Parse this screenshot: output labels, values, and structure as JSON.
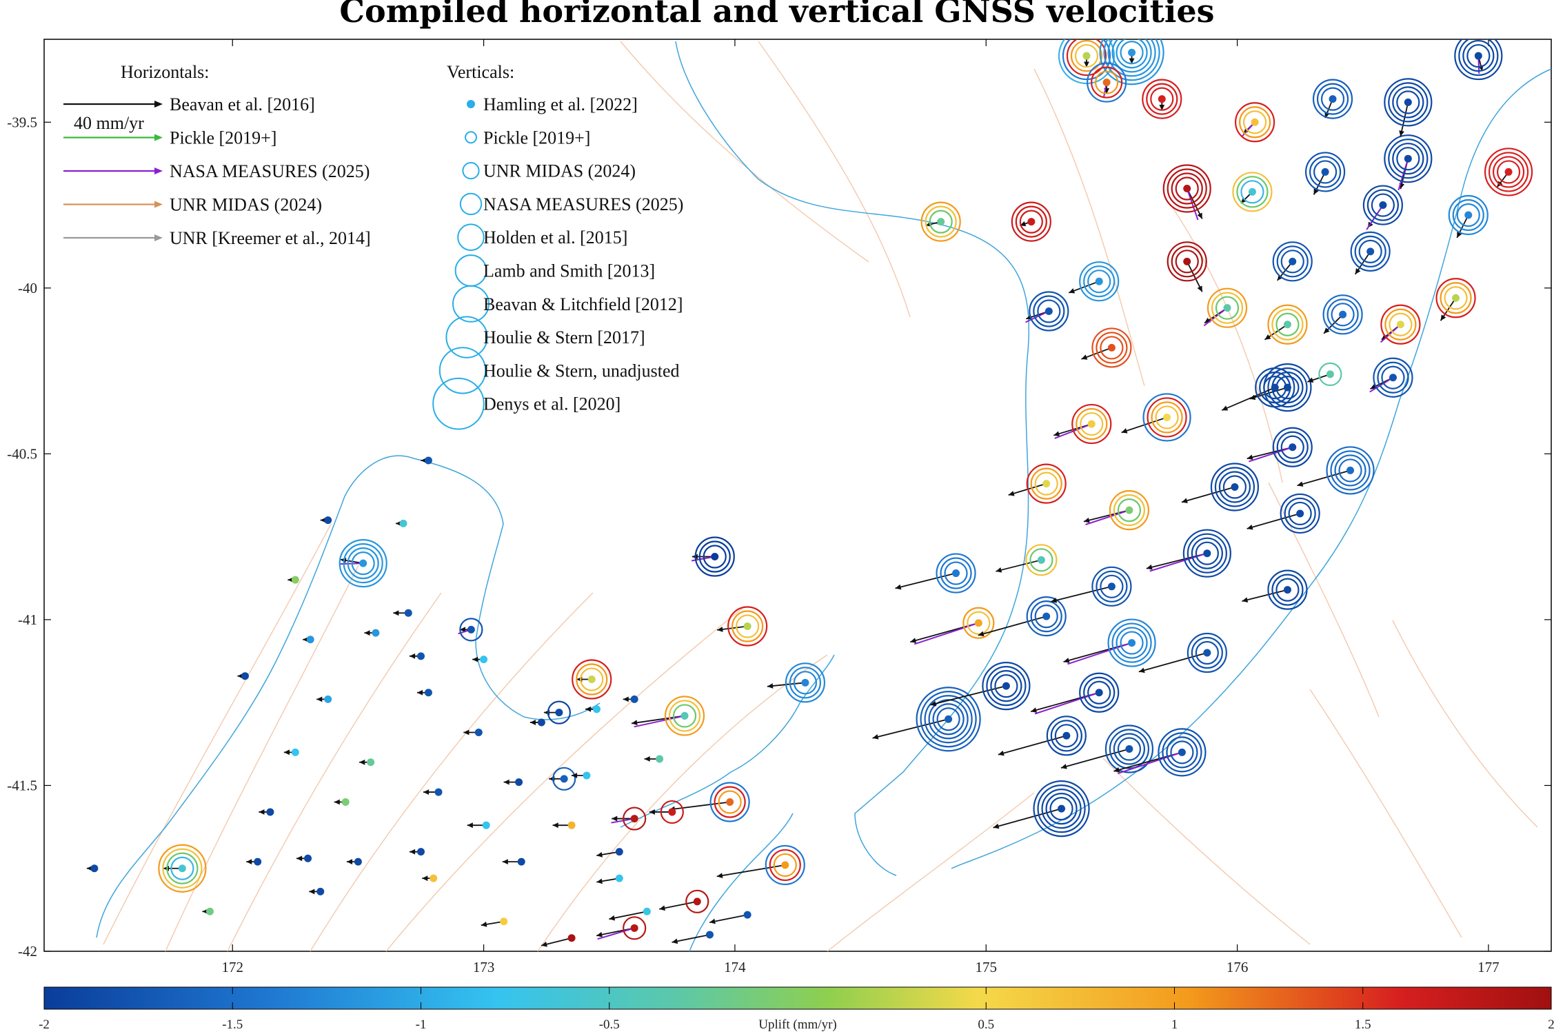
{
  "chart_data": {
    "type": "scatter",
    "title": "Compiled horizontal and vertical GNSS velocities",
    "xlim": [
      171.25,
      177.25
    ],
    "ylim": [
      -42.0,
      -39.25
    ],
    "x_ticks": [
      172,
      173,
      174,
      175,
      176,
      177
    ],
    "y_ticks": [
      -39.5,
      -40,
      -40.5,
      -41,
      -41.5,
      -42
    ],
    "horizontal_legend": {
      "heading": "Horizontals:",
      "scale_label": "40 mm/yr",
      "entries": [
        {
          "name": "Beavan et al. [2016]",
          "color": "#111111"
        },
        {
          "name": "Pickle [2019+]",
          "color": "#3cb83c"
        },
        {
          "name": "NASA MEASURES (2025)",
          "color": "#8a1fd0"
        },
        {
          "name": "UNR MIDAS (2024)",
          "color": "#d4935a"
        },
        {
          "name": "UNR [Kreemer et al., 2014]",
          "color": "#999999"
        }
      ]
    },
    "vertical_legend": {
      "heading": "Verticals:",
      "entries": [
        {
          "name": "Hamling et al. [2022]",
          "marker": "dot"
        },
        {
          "name": "Pickle [2019+]",
          "marker": "ring"
        },
        {
          "name": "UNR MIDAS (2024)",
          "marker": "ring"
        },
        {
          "name": "NASA MEASURES (2025)",
          "marker": "ring"
        },
        {
          "name": "Holden et al. [2015]",
          "marker": "ring"
        },
        {
          "name": "Lamb and Smith [2013]",
          "marker": "ring"
        },
        {
          "name": "Beavan & Litchfield [2012]",
          "marker": "ring"
        },
        {
          "name": "Houlie & Stern [2017]",
          "marker": "ring"
        },
        {
          "name": "Houlie & Stern, unadjusted",
          "marker": "ring"
        },
        {
          "name": "Denys et al. [2020]",
          "marker": "ring"
        }
      ]
    },
    "colorbar": {
      "label": "Uplift (mm/yr)",
      "range": [
        -2,
        2
      ],
      "ticks": [
        "-2",
        "-1.5",
        "-1",
        "-0.5",
        "0.5",
        "1",
        "1.5",
        "2"
      ],
      "colormap": [
        "#0a3d9a",
        "#1f78d1",
        "#35c3f0",
        "#5cc8a8",
        "#8fcf4f",
        "#f5d94a",
        "#f39a1c",
        "#d61f1f",
        "#a01010"
      ]
    },
    "sites": [
      {
        "lon": 172.52,
        "lat": -40.83,
        "uplift": -1.3,
        "rings": 4,
        "vx": -6,
        "vy": 1
      },
      {
        "lon": 171.8,
        "lat": -41.75,
        "uplift": -0.8,
        "rings": 4,
        "vx": -5,
        "vy": 0
      },
      {
        "lon": 173.43,
        "lat": -41.18,
        "uplift": 0.3,
        "rings": 3,
        "vx": -4,
        "vy": 0
      },
      {
        "lon": 173.92,
        "lat": -40.81,
        "uplift": -2.0,
        "rings": 3,
        "vx": -6,
        "vy": 0
      },
      {
        "lon": 174.05,
        "lat": -41.02,
        "uplift": 0.2,
        "rings": 3,
        "vx": -8,
        "vy": -1
      },
      {
        "lon": 174.28,
        "lat": -41.19,
        "uplift": -1.4,
        "rings": 3,
        "vx": -10,
        "vy": -1
      },
      {
        "lon": 173.8,
        "lat": -41.29,
        "uplift": -0.6,
        "rings": 3,
        "vx": -14,
        "vy": -2
      },
      {
        "lon": 173.98,
        "lat": -41.55,
        "uplift": 1.2,
        "rings": 3,
        "vx": -16,
        "vy": -2
      },
      {
        "lon": 174.2,
        "lat": -41.74,
        "uplift": 1.0,
        "rings": 3,
        "vx": -18,
        "vy": -3
      },
      {
        "lon": 172.95,
        "lat": -41.03,
        "uplift": -1.8,
        "rings": 1,
        "vx": -3,
        "vy": 0
      },
      {
        "lon": 173.3,
        "lat": -41.28,
        "uplift": -1.9,
        "rings": 1,
        "vx": -4,
        "vy": 0
      },
      {
        "lon": 173.32,
        "lat": -41.48,
        "uplift": -1.7,
        "rings": 1,
        "vx": -4,
        "vy": 0
      },
      {
        "lon": 173.6,
        "lat": -41.6,
        "uplift": 1.8,
        "rings": 1,
        "vx": -6,
        "vy": 0
      },
      {
        "lon": 173.75,
        "lat": -41.58,
        "uplift": 1.6,
        "rings": 1,
        "vx": -6,
        "vy": 0
      },
      {
        "lon": 173.85,
        "lat": -41.85,
        "uplift": 1.8,
        "rings": 1,
        "vx": -10,
        "vy": -2
      },
      {
        "lon": 173.6,
        "lat": -41.93,
        "uplift": 1.8,
        "rings": 1,
        "vx": -10,
        "vy": -2
      },
      {
        "lon": 174.82,
        "lat": -39.8,
        "uplift": -0.4,
        "rings": 3,
        "vx": -4,
        "vy": -1
      },
      {
        "lon": 175.18,
        "lat": -39.8,
        "uplift": 1.6,
        "rings": 3,
        "vx": -3,
        "vy": -1
      },
      {
        "lon": 175.25,
        "lat": -40.07,
        "uplift": -1.8,
        "rings": 3,
        "vx": -6,
        "vy": -2
      },
      {
        "lon": 175.45,
        "lat": -39.98,
        "uplift": -1.3,
        "rings": 3,
        "vx": -8,
        "vy": -3
      },
      {
        "lon": 175.5,
        "lat": -40.18,
        "uplift": 1.3,
        "rings": 3,
        "vx": -8,
        "vy": -3
      },
      {
        "lon": 175.42,
        "lat": -40.41,
        "uplift": 0.6,
        "rings": 3,
        "vx": -10,
        "vy": -3
      },
      {
        "lon": 175.72,
        "lat": -40.39,
        "uplift": 0.5,
        "rings": 4,
        "vx": -12,
        "vy": -4
      },
      {
        "lon": 175.24,
        "lat": -40.59,
        "uplift": 0.4,
        "rings": 3,
        "vx": -10,
        "vy": -3
      },
      {
        "lon": 175.57,
        "lat": -40.67,
        "uplift": -0.2,
        "rings": 3,
        "vx": -12,
        "vy": -3
      },
      {
        "lon": 175.22,
        "lat": -40.82,
        "uplift": -0.6,
        "rings": 2,
        "vx": -12,
        "vy": -3
      },
      {
        "lon": 174.88,
        "lat": -40.86,
        "uplift": -1.5,
        "rings": 3,
        "vx": -16,
        "vy": -4
      },
      {
        "lon": 174.97,
        "lat": -41.01,
        "uplift": 0.9,
        "rings": 2,
        "vx": -18,
        "vy": -5
      },
      {
        "lon": 175.24,
        "lat": -40.99,
        "uplift": -1.7,
        "rings": 3,
        "vx": -18,
        "vy": -5
      },
      {
        "lon": 175.5,
        "lat": -40.9,
        "uplift": -1.8,
        "rings": 3,
        "vx": -16,
        "vy": -4
      },
      {
        "lon": 175.58,
        "lat": -41.07,
        "uplift": -1.4,
        "rings": 4,
        "vx": -18,
        "vy": -5
      },
      {
        "lon": 175.88,
        "lat": -41.1,
        "uplift": -1.8,
        "rings": 3,
        "vx": -18,
        "vy": -5
      },
      {
        "lon": 176.2,
        "lat": -40.91,
        "uplift": -1.9,
        "rings": 3,
        "vx": -12,
        "vy": -3
      },
      {
        "lon": 175.88,
        "lat": -40.8,
        "uplift": -1.9,
        "rings": 4,
        "vx": -16,
        "vy": -4
      },
      {
        "lon": 175.99,
        "lat": -40.6,
        "uplift": -1.9,
        "rings": 4,
        "vx": -14,
        "vy": -4
      },
      {
        "lon": 176.25,
        "lat": -40.68,
        "uplift": -1.9,
        "rings": 3,
        "vx": -14,
        "vy": -4
      },
      {
        "lon": 176.22,
        "lat": -40.48,
        "uplift": -1.9,
        "rings": 3,
        "vx": -12,
        "vy": -3
      },
      {
        "lon": 176.45,
        "lat": -40.55,
        "uplift": -1.6,
        "rings": 4,
        "vx": -14,
        "vy": -4
      },
      {
        "lon": 176.2,
        "lat": -40.3,
        "uplift": -1.9,
        "rings": 4,
        "vx": -10,
        "vy": -3
      },
      {
        "lon": 176.62,
        "lat": -40.27,
        "uplift": -1.8,
        "rings": 3,
        "vx": -6,
        "vy": -3
      },
      {
        "lon": 176.37,
        "lat": -40.26,
        "uplift": -0.5,
        "rings": 1,
        "vx": -6,
        "vy": -2
      },
      {
        "lon": 175.32,
        "lat": -41.35,
        "uplift": -1.9,
        "rings": 3,
        "vx": -18,
        "vy": -5
      },
      {
        "lon": 175.45,
        "lat": -41.22,
        "uplift": -1.9,
        "rings": 3,
        "vx": -18,
        "vy": -5
      },
      {
        "lon": 175.3,
        "lat": -41.57,
        "uplift": -1.9,
        "rings": 5,
        "vx": -18,
        "vy": -5
      },
      {
        "lon": 175.57,
        "lat": -41.39,
        "uplift": -1.8,
        "rings": 4,
        "vx": -18,
        "vy": -5
      },
      {
        "lon": 175.78,
        "lat": -41.4,
        "uplift": -1.8,
        "rings": 4,
        "vx": -18,
        "vy": -5
      },
      {
        "lon": 174.85,
        "lat": -41.3,
        "uplift": -1.7,
        "rings": 6,
        "vx": -20,
        "vy": -5
      },
      {
        "lon": 175.08,
        "lat": -41.2,
        "uplift": -1.9,
        "rings": 4,
        "vx": -20,
        "vy": -5
      },
      {
        "lon": 175.8,
        "lat": -39.7,
        "uplift": 1.8,
        "rings": 4,
        "vx": 4,
        "vy": -8
      },
      {
        "lon": 175.8,
        "lat": -39.92,
        "uplift": 1.9,
        "rings": 3,
        "vx": 4,
        "vy": -8
      },
      {
        "lon": 176.06,
        "lat": -39.71,
        "uplift": -0.8,
        "rings": 3,
        "vx": -3,
        "vy": -3
      },
      {
        "lon": 176.07,
        "lat": -39.5,
        "uplift": 0.7,
        "rings": 3,
        "vx": -3,
        "vy": -3
      },
      {
        "lon": 176.38,
        "lat": -39.43,
        "uplift": -1.7,
        "rings": 3,
        "vx": -2,
        "vy": -5
      },
      {
        "lon": 176.35,
        "lat": -39.65,
        "uplift": -1.8,
        "rings": 3,
        "vx": -3,
        "vy": -6
      },
      {
        "lon": 176.58,
        "lat": -39.75,
        "uplift": -1.9,
        "rings": 3,
        "vx": -4,
        "vy": -6
      },
      {
        "lon": 176.53,
        "lat": -39.89,
        "uplift": -1.8,
        "rings": 3,
        "vx": -4,
        "vy": -6
      },
      {
        "lon": 176.22,
        "lat": -39.92,
        "uplift": -1.8,
        "rings": 3,
        "vx": -4,
        "vy": -5
      },
      {
        "lon": 176.68,
        "lat": -39.61,
        "uplift": -1.9,
        "rings": 4,
        "vx": -2,
        "vy": -8
      },
      {
        "lon": 176.68,
        "lat": -39.44,
        "uplift": -1.9,
        "rings": 4,
        "vx": -2,
        "vy": -9
      },
      {
        "lon": 176.92,
        "lat": -39.78,
        "uplift": -1.4,
        "rings": 3,
        "vx": -3,
        "vy": -6
      },
      {
        "lon": 176.96,
        "lat": -39.3,
        "uplift": -1.9,
        "rings": 4,
        "vx": 1,
        "vy": -4
      },
      {
        "lon": 177.08,
        "lat": -39.65,
        "uplift": 1.5,
        "rings": 4,
        "vx": -3,
        "vy": -4
      },
      {
        "lon": 176.87,
        "lat": -40.03,
        "uplift": 0.2,
        "rings": 3,
        "vx": -4,
        "vy": -6
      },
      {
        "lon": 176.65,
        "lat": -40.11,
        "uplift": 0.4,
        "rings": 3,
        "vx": -5,
        "vy": -4
      },
      {
        "lon": 176.42,
        "lat": -40.08,
        "uplift": -1.6,
        "rings": 3,
        "vx": -5,
        "vy": -5
      },
      {
        "lon": 176.2,
        "lat": -40.11,
        "uplift": -0.5,
        "rings": 3,
        "vx": -6,
        "vy": -4
      },
      {
        "lon": 175.96,
        "lat": -40.06,
        "uplift": -0.5,
        "rings": 3,
        "vx": -6,
        "vy": -4
      },
      {
        "lon": 175.4,
        "lat": -39.3,
        "uplift": 0.2,
        "rings": 5,
        "vx": 0,
        "vy": -3
      },
      {
        "lon": 175.58,
        "lat": -39.29,
        "uplift": -1.3,
        "rings": 6,
        "vx": 0,
        "vy": -3
      },
      {
        "lon": 175.48,
        "lat": -39.38,
        "uplift": 1.2,
        "rings": 3,
        "vx": 0,
        "vy": -3
      },
      {
        "lon": 175.7,
        "lat": -39.43,
        "uplift": 1.5,
        "rings": 3,
        "vx": 0,
        "vy": -3
      },
      {
        "lon": 176.15,
        "lat": -40.3,
        "uplift": -1.9,
        "rings": 3,
        "vx": -14,
        "vy": -6
      },
      {
        "lon": 172.7,
        "lat": -40.98,
        "uplift": -1.8,
        "rings": 0,
        "vx": -4,
        "vy": 0
      },
      {
        "lon": 172.38,
        "lat": -40.7,
        "uplift": -1.9,
        "rings": 0,
        "vx": -2,
        "vy": 0
      },
      {
        "lon": 172.25,
        "lat": -40.88,
        "uplift": -0.1,
        "rings": 0,
        "vx": -2,
        "vy": 0
      },
      {
        "lon": 172.78,
        "lat": -40.52,
        "uplift": -1.8,
        "rings": 0,
        "vx": -2,
        "vy": 0
      },
      {
        "lon": 172.68,
        "lat": -40.71,
        "uplift": -0.8,
        "rings": 0,
        "vx": -2,
        "vy": 0
      },
      {
        "lon": 172.05,
        "lat": -41.17,
        "uplift": -1.9,
        "rings": 0,
        "vx": -2,
        "vy": 0
      },
      {
        "lon": 172.31,
        "lat": -41.06,
        "uplift": -1.3,
        "rings": 0,
        "vx": -2,
        "vy": 0
      },
      {
        "lon": 172.57,
        "lat": -41.04,
        "uplift": -1.3,
        "rings": 0,
        "vx": -3,
        "vy": 0
      },
      {
        "lon": 172.75,
        "lat": -41.11,
        "uplift": -1.8,
        "rings": 0,
        "vx": -3,
        "vy": 0
      },
      {
        "lon": 172.38,
        "lat": -41.24,
        "uplift": -1.2,
        "rings": 0,
        "vx": -3,
        "vy": 0
      },
      {
        "lon": 172.78,
        "lat": -41.22,
        "uplift": -1.8,
        "rings": 0,
        "vx": -3,
        "vy": 0
      },
      {
        "lon": 173.0,
        "lat": -41.12,
        "uplift": -1.0,
        "rings": 0,
        "vx": -3,
        "vy": 0
      },
      {
        "lon": 173.23,
        "lat": -41.31,
        "uplift": -1.9,
        "rings": 0,
        "vx": -3,
        "vy": 0
      },
      {
        "lon": 173.45,
        "lat": -41.27,
        "uplift": -1.0,
        "rings": 0,
        "vx": -3,
        "vy": 0
      },
      {
        "lon": 173.6,
        "lat": -41.24,
        "uplift": -1.8,
        "rings": 0,
        "vx": -3,
        "vy": 0
      },
      {
        "lon": 172.98,
        "lat": -41.34,
        "uplift": -1.8,
        "rings": 0,
        "vx": -4,
        "vy": 0
      },
      {
        "lon": 172.25,
        "lat": -41.4,
        "uplift": -1.0,
        "rings": 0,
        "vx": -3,
        "vy": 0
      },
      {
        "lon": 172.55,
        "lat": -41.43,
        "uplift": -0.4,
        "rings": 0,
        "vx": -3,
        "vy": 0
      },
      {
        "lon": 172.82,
        "lat": -41.52,
        "uplift": -1.8,
        "rings": 0,
        "vx": -4,
        "vy": 0
      },
      {
        "lon": 173.14,
        "lat": -41.49,
        "uplift": -1.9,
        "rings": 0,
        "vx": -4,
        "vy": 0
      },
      {
        "lon": 173.41,
        "lat": -41.47,
        "uplift": -1.0,
        "rings": 0,
        "vx": -4,
        "vy": 0
      },
      {
        "lon": 173.7,
        "lat": -41.42,
        "uplift": -0.5,
        "rings": 0,
        "vx": -4,
        "vy": 0
      },
      {
        "lon": 173.01,
        "lat": -41.62,
        "uplift": -1.0,
        "rings": 0,
        "vx": -5,
        "vy": 0
      },
      {
        "lon": 173.35,
        "lat": -41.62,
        "uplift": 0.8,
        "rings": 0,
        "vx": -5,
        "vy": 0
      },
      {
        "lon": 173.15,
        "lat": -41.73,
        "uplift": -1.9,
        "rings": 0,
        "vx": -5,
        "vy": 0
      },
      {
        "lon": 173.54,
        "lat": -41.7,
        "uplift": -1.9,
        "rings": 0,
        "vx": -6,
        "vy": -1
      },
      {
        "lon": 173.54,
        "lat": -41.78,
        "uplift": -1.0,
        "rings": 0,
        "vx": -6,
        "vy": -1
      },
      {
        "lon": 172.15,
        "lat": -41.58,
        "uplift": -1.9,
        "rings": 0,
        "vx": -3,
        "vy": 0
      },
      {
        "lon": 172.45,
        "lat": -41.55,
        "uplift": -0.2,
        "rings": 0,
        "vx": -3,
        "vy": 0
      },
      {
        "lon": 172.1,
        "lat": -41.73,
        "uplift": -1.9,
        "rings": 0,
        "vx": -3,
        "vy": 0
      },
      {
        "lon": 172.3,
        "lat": -41.72,
        "uplift": -1.9,
        "rings": 0,
        "vx": -3,
        "vy": 0
      },
      {
        "lon": 172.5,
        "lat": -41.73,
        "uplift": -1.9,
        "rings": 0,
        "vx": -3,
        "vy": 0
      },
      {
        "lon": 172.75,
        "lat": -41.7,
        "uplift": -1.9,
        "rings": 0,
        "vx": -3,
        "vy": 0
      },
      {
        "lon": 172.8,
        "lat": -41.78,
        "uplift": 0.7,
        "rings": 0,
        "vx": -3,
        "vy": 0
      },
      {
        "lon": 172.35,
        "lat": -41.82,
        "uplift": -1.9,
        "rings": 0,
        "vx": -3,
        "vy": 0
      },
      {
        "lon": 171.91,
        "lat": -41.88,
        "uplift": -0.3,
        "rings": 0,
        "vx": -2,
        "vy": 0
      },
      {
        "lon": 171.45,
        "lat": -41.75,
        "uplift": -1.9,
        "rings": 0,
        "vx": -2,
        "vy": 0
      },
      {
        "lon": 173.08,
        "lat": -41.91,
        "uplift": 0.6,
        "rings": 0,
        "vx": -6,
        "vy": -1
      },
      {
        "lon": 173.35,
        "lat": -41.96,
        "uplift": 1.9,
        "rings": 0,
        "vx": -8,
        "vy": -2
      },
      {
        "lon": 173.9,
        "lat": -41.95,
        "uplift": -1.8,
        "rings": 0,
        "vx": -10,
        "vy": -2
      },
      {
        "lon": 174.05,
        "lat": -41.89,
        "uplift": -1.8,
        "rings": 0,
        "vx": -10,
        "vy": -2
      },
      {
        "lon": 173.65,
        "lat": -41.88,
        "uplift": -0.9,
        "rings": 0,
        "vx": -10,
        "vy": -2
      }
    ]
  }
}
